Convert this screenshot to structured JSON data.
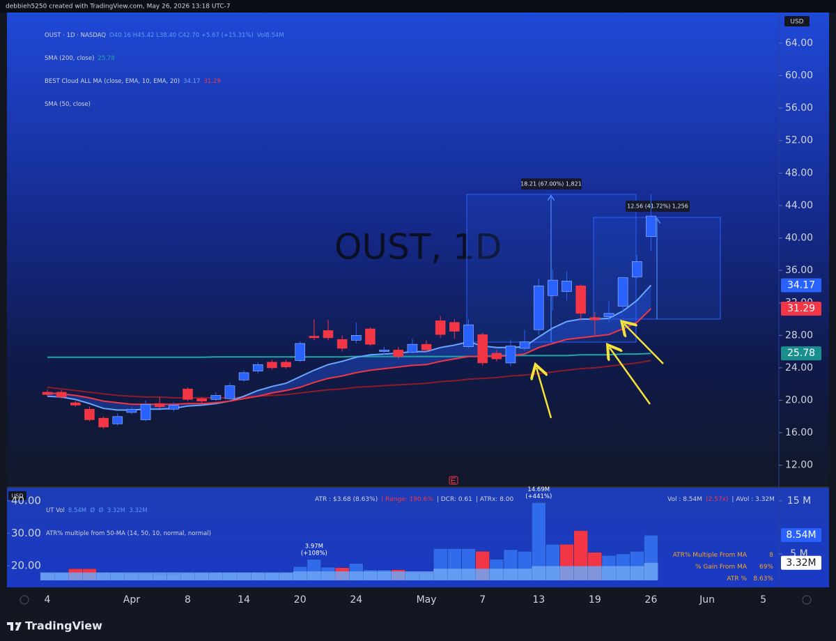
{
  "header": {
    "credit": "debbieh5250 created with TradingView.com, May 26, 2026 13:18 UTC-7",
    "currency": "USD",
    "lower_currency": "USD",
    "footer_brand": "TradingView"
  },
  "legend": {
    "symbol": "OUST · 1D · NASDAQ",
    "ohlc": "O40.16 H45.42 L38.40 C42.70 +5.67 (+15.31%)",
    "volume": "Vol8.54M"
  },
  "lower_legend": {
    "title": "UT Vol",
    "values": "8.54M  Ø  Ø  3.32M  3.32M",
    "atr_multiple": "ATR% multiple from 50-MA (14, 50, 10, normal, normal)",
    "atr": "ATR : $3.68 (8.63%)",
    "range": "| Range: 190.6%",
    "dcr": "| DCR: 0.61",
    "atrx": "| ATRx: 8.00",
    "vol": "Vol : 8.54M",
    "vol_ratio": "(2.57x)",
    "avol": "| AVol : 3.32M"
  },
  "table": {
    "rows": [
      [
        "ATR% Multiple From MA",
        "8"
      ],
      [
        "% Gain From MA",
        "69%"
      ],
      [
        "ATR %",
        "8.63%"
      ]
    ]
  },
  "measurements": [
    {
      "label": "18.21 (67.00%) 1,821"
    },
    {
      "label": "12.56 (41.72%) 1,256"
    }
  ],
  "chart_data": [
    {
      "type": "candlestick",
      "watermark": "OUST, 1D",
      "categories": [
        "4",
        null,
        null,
        null,
        null,
        null,
        "Apr",
        null,
        null,
        null,
        "8",
        null,
        null,
        null,
        "14",
        null,
        null,
        null,
        "20",
        null,
        null,
        null,
        "24",
        null,
        null,
        null,
        null,
        "May",
        null,
        null,
        null,
        "7",
        null,
        null,
        null,
        "13",
        null,
        null,
        null,
        "19",
        null,
        null,
        null,
        "26",
        null,
        null,
        null,
        "Jun",
        null,
        null,
        null,
        "5"
      ],
      "open": [
        21.0,
        21.0,
        19.7,
        18.9,
        17.8,
        17.1,
        18.5,
        17.6,
        19.6,
        18.9,
        21.4,
        20.2,
        20.1,
        20.2,
        22.5,
        23.6,
        24.7,
        24.7,
        24.9,
        27.9,
        28.6,
        27.5,
        27.4,
        28.8,
        26.0,
        26.2,
        25.9,
        26.9,
        29.8,
        29.6,
        26.6,
        28.1,
        25.8,
        24.6,
        26.4,
        28.7,
        32.9,
        33.4,
        34.1,
        30.2,
        30.3,
        31.6,
        35.2,
        40.16,
        null,
        null,
        null,
        null,
        null,
        null,
        null,
        null
      ],
      "high": [
        21.3,
        21.3,
        19.9,
        19.2,
        18.0,
        18.4,
        19.2,
        20.0,
        20.4,
        19.8,
        21.6,
        20.4,
        21.0,
        22.2,
        23.7,
        24.7,
        25.0,
        25.0,
        27.3,
        30.0,
        29.9,
        28.0,
        29.6,
        29.0,
        26.6,
        26.6,
        27.6,
        27.4,
        30.4,
        30.0,
        30.0,
        28.3,
        26.2,
        27.5,
        28.7,
        35.0,
        36.1,
        35.9,
        34.3,
        30.9,
        32.2,
        35.2,
        37.9,
        45.42,
        null,
        null,
        null,
        null,
        null,
        null,
        null,
        null
      ],
      "low": [
        20.5,
        20.2,
        19.2,
        17.4,
        16.5,
        16.9,
        18.3,
        17.4,
        19.0,
        18.6,
        19.9,
        19.6,
        19.9,
        19.9,
        22.3,
        23.3,
        23.8,
        23.9,
        24.7,
        27.4,
        27.4,
        26.0,
        27.0,
        26.7,
        25.6,
        25.1,
        25.7,
        25.9,
        27.7,
        27.6,
        26.4,
        24.3,
        24.8,
        24.2,
        26.1,
        28.1,
        31.1,
        32.3,
        29.8,
        27.9,
        29.6,
        30.9,
        35.0,
        38.4,
        null,
        null,
        null,
        null,
        null,
        null,
        null,
        null
      ],
      "close": [
        20.7,
        20.4,
        19.4,
        17.6,
        16.7,
        18.0,
        18.9,
        19.5,
        19.2,
        19.4,
        20.1,
        19.9,
        20.6,
        21.8,
        23.4,
        24.4,
        24.0,
        24.1,
        27.0,
        27.7,
        27.7,
        26.4,
        28.0,
        26.9,
        26.2,
        25.4,
        26.9,
        26.2,
        28.1,
        28.5,
        29.3,
        24.6,
        25.1,
        26.7,
        27.2,
        34.1,
        34.8,
        34.7,
        30.7,
        29.9,
        30.7,
        35.1,
        37.1,
        42.7,
        null,
        null,
        null,
        null,
        null,
        null,
        null,
        null
      ],
      "up_color": "#2962ff",
      "down_color": "#f23645",
      "lines": [
        {
          "name": "SMA (200, close)",
          "color": "#22a7a7",
          "values": [
            25.3,
            25.3,
            25.3,
            25.3,
            25.3,
            25.3,
            25.3,
            25.3,
            25.3,
            25.3,
            25.3,
            25.3,
            25.35,
            25.35,
            25.35,
            25.35,
            25.35,
            25.35,
            25.35,
            25.35,
            25.35,
            25.35,
            25.4,
            25.4,
            25.4,
            25.4,
            25.4,
            25.4,
            25.4,
            25.4,
            25.4,
            25.4,
            25.5,
            25.5,
            25.5,
            25.5,
            25.5,
            25.5,
            25.6,
            25.6,
            25.6,
            25.7,
            25.7,
            25.78,
            null,
            null,
            null,
            null,
            null,
            null,
            null,
            null
          ]
        },
        {
          "name": "SMA (50, close)",
          "color": "#8e1c2c",
          "values": [
            21.6,
            21.4,
            21.2,
            21.0,
            20.8,
            20.6,
            20.5,
            20.4,
            20.4,
            20.3,
            20.3,
            20.3,
            20.3,
            20.3,
            20.4,
            20.5,
            20.6,
            20.7,
            20.9,
            21.1,
            21.3,
            21.4,
            21.6,
            21.7,
            21.8,
            21.9,
            22.0,
            22.1,
            22.3,
            22.4,
            22.6,
            22.7,
            22.8,
            23.0,
            23.1,
            23.3,
            23.5,
            23.7,
            23.9,
            24.0,
            24.2,
            24.4,
            24.6,
            24.9,
            null,
            null,
            null,
            null,
            null,
            null,
            null,
            null
          ]
        }
      ],
      "cloud": {
        "name": "BEST Cloud ALL MA (close, EMA, 10, EMA, 20)",
        "fill": "#2962ff",
        "fast": {
          "color": "#6aa6ff",
          "values": [
            20.5,
            20.4,
            20.1,
            19.6,
            19.0,
            18.8,
            18.8,
            18.9,
            18.9,
            19.0,
            19.3,
            19.4,
            19.6,
            19.9,
            20.5,
            21.2,
            21.7,
            22.1,
            22.9,
            23.7,
            24.4,
            24.8,
            25.3,
            25.6,
            25.7,
            25.8,
            26.0,
            26.0,
            26.5,
            26.8,
            27.2,
            26.7,
            26.5,
            26.5,
            26.6,
            27.8,
            28.9,
            29.7,
            30.0,
            30.0,
            30.1,
            31.0,
            32.3,
            34.17,
            null,
            null,
            null,
            null,
            null,
            null,
            null,
            null
          ]
        },
        "slow": {
          "color": "#f23645",
          "values": [
            20.9,
            20.8,
            20.6,
            20.3,
            19.9,
            19.7,
            19.5,
            19.5,
            19.5,
            19.5,
            19.6,
            19.6,
            19.7,
            19.9,
            20.2,
            20.5,
            20.9,
            21.2,
            21.6,
            22.2,
            22.7,
            23.0,
            23.4,
            23.7,
            23.9,
            24.1,
            24.3,
            24.4,
            24.8,
            25.1,
            25.4,
            25.4,
            25.4,
            25.5,
            25.7,
            26.5,
            27.0,
            27.5,
            27.7,
            27.9,
            28.1,
            28.8,
            29.6,
            31.29,
            null,
            null,
            null,
            null,
            null,
            null,
            null,
            null
          ]
        }
      },
      "ylim": [
        9.4,
        67.6
      ],
      "yticks": [
        {
          "value": 12,
          "label": "12.00"
        },
        {
          "value": 16,
          "label": "16.00"
        },
        {
          "value": 20,
          "label": "20.00"
        },
        {
          "value": 24,
          "label": "24.00"
        },
        {
          "value": 28,
          "label": "28.00"
        },
        {
          "value": 32,
          "label": "32.00"
        },
        {
          "value": 36,
          "label": "36.00"
        },
        {
          "value": 40,
          "label": "40.00"
        },
        {
          "value": 44,
          "label": "44.00"
        },
        {
          "value": 48,
          "label": "48.00"
        },
        {
          "value": 52,
          "label": "52.00"
        },
        {
          "value": 56,
          "label": "56.00"
        },
        {
          "value": 60,
          "label": "60.00"
        },
        {
          "value": 64,
          "label": "64.00"
        }
      ],
      "grid": false
    },
    {
      "type": "bar",
      "series": [
        {
          "name": "Vol",
          "color": "#2f6bea",
          "down_color": "#f23645",
          "values": [
            1.4,
            1.4,
            2.2,
            2.2,
            1.5,
            1.5,
            1.3,
            1.3,
            1.0,
            1.0,
            1.4,
            1.4,
            1.5,
            1.5,
            1.5,
            1.5,
            1.4,
            1.4,
            2.6,
            3.97,
            2.5,
            2.4,
            3.2,
            2.0,
            2.0,
            2.0,
            1.4,
            1.4,
            6.0,
            6.0,
            6.0,
            5.5,
            4.0,
            5.8,
            5.5,
            14.69,
            6.8,
            6.8,
            9.4,
            5.3,
            4.7,
            5.0,
            5.5,
            8.54
          ],
          "down": [
            false,
            false,
            true,
            true,
            false,
            false,
            false,
            false,
            false,
            false,
            false,
            false,
            false,
            false,
            false,
            false,
            false,
            false,
            false,
            false,
            false,
            true,
            false,
            false,
            false,
            true,
            false,
            false,
            false,
            false,
            false,
            true,
            false,
            false,
            false,
            false,
            false,
            true,
            true,
            true,
            false,
            false,
            false,
            false
          ],
          "value_labels": [
            null,
            null,
            null,
            null,
            null,
            null,
            null,
            null,
            null,
            null,
            null,
            null,
            null,
            null,
            null,
            null,
            null,
            null,
            null,
            "3.97M",
            null,
            null,
            null,
            null,
            null,
            null,
            null,
            null,
            null,
            null,
            null,
            null,
            null,
            null,
            null,
            "14.69M",
            null,
            null,
            null,
            null,
            null,
            null,
            null,
            "8.54M"
          ],
          "value_notes": [
            null,
            null,
            null,
            null,
            null,
            null,
            null,
            null,
            null,
            null,
            null,
            null,
            null,
            null,
            null,
            null,
            null,
            null,
            null,
            "(+108%)",
            null,
            null,
            null,
            null,
            null,
            null,
            null,
            null,
            null,
            null,
            null,
            null,
            null,
            null,
            null,
            "(+441%)",
            null,
            null,
            null,
            null,
            null,
            null,
            null,
            null
          ]
        },
        {
          "name": "AVol",
          "color": "#6fa4f5",
          "values": [
            1.5,
            1.5,
            1.5,
            1.5,
            1.5,
            1.5,
            1.5,
            1.5,
            1.5,
            1.5,
            1.5,
            1.5,
            1.5,
            1.5,
            1.5,
            1.5,
            1.5,
            1.5,
            1.7,
            1.7,
            1.7,
            1.7,
            1.7,
            1.7,
            1.7,
            1.7,
            1.7,
            1.7,
            2.2,
            2.2,
            2.2,
            2.2,
            2.2,
            2.2,
            2.2,
            2.7,
            2.7,
            2.7,
            2.7,
            2.7,
            2.7,
            2.7,
            2.7,
            3.32
          ],
          "value_labels": [
            null,
            null,
            null,
            null,
            null,
            null,
            null,
            null,
            null,
            null,
            null,
            null,
            null,
            null,
            null,
            null,
            null,
            null,
            null,
            null,
            null,
            null,
            null,
            null,
            null,
            null,
            null,
            null,
            null,
            null,
            null,
            null,
            null,
            null,
            null,
            null,
            null,
            null,
            null,
            null,
            null,
            null,
            null,
            "3.32M"
          ]
        }
      ],
      "ylim": [
        0,
        16.7
      ],
      "yticks": [
        {
          "value": 5,
          "label": "5 M"
        },
        {
          "value": 15,
          "label": "15 M"
        }
      ],
      "y2lim": [
        15.5,
        42.75
      ],
      "y2ticks": [
        {
          "value": 20,
          "label": "20.00"
        },
        {
          "value": 30,
          "label": "30.00"
        },
        {
          "value": 40,
          "label": "40.00"
        }
      ]
    }
  ]
}
